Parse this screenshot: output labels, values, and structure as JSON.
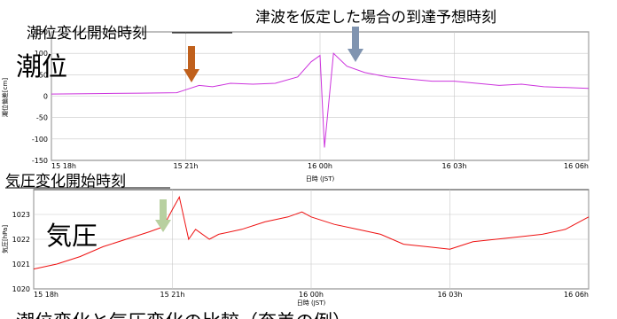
{
  "chart_data": [
    {
      "type": "line",
      "big_label": "潮位",
      "ylabel": "潮位偏差[cm]",
      "xlabel": "日時 (JST)",
      "ylim": [
        -150,
        150
      ],
      "yticks": [
        -150,
        -100,
        -50,
        0,
        50,
        100,
        150
      ],
      "ytick_labels": [
        "-150",
        "-100",
        "-50",
        "0",
        "50",
        "100",
        "150"
      ],
      "xlim": [
        0,
        12
      ],
      "xticks": [
        0,
        3,
        6,
        9,
        12
      ],
      "xtick_labels": [
        "15 18h",
        "15 21h",
        "16 00h",
        "16 03h",
        "16 06h"
      ],
      "grid": true,
      "color": "#cc33dd",
      "series": [
        {
          "x": [
            0,
            1,
            2,
            2.8,
            3.0,
            3.3,
            3.6,
            4.0,
            4.5,
            5.0,
            5.5,
            5.8,
            6.0,
            6.1,
            6.3,
            6.6,
            7.0,
            7.5,
            8.0,
            8.5,
            9.0,
            9.5,
            10.0,
            10.5,
            11.0,
            11.5,
            12.0
          ],
          "y": [
            5,
            6,
            7,
            8,
            15,
            25,
            22,
            30,
            28,
            30,
            45,
            80,
            95,
            -120,
            100,
            70,
            55,
            45,
            40,
            35,
            35,
            30,
            25,
            28,
            22,
            20,
            18
          ]
        }
      ],
      "annotations": {
        "start_label": "潮位変化開始時刻",
        "arrival_label": "津波を仮定した場合の到達予想時刻"
      }
    },
    {
      "type": "line",
      "big_label": "気圧",
      "ylabel": "気圧[hPa]",
      "xlabel": "日時 (JST)",
      "ylim": [
        1020,
        1024
      ],
      "yticks": [
        1020,
        1021,
        1022,
        1023
      ],
      "ytick_labels": [
        "1020",
        "1021",
        "1022",
        "1023"
      ],
      "xlim": [
        0,
        12
      ],
      "xticks": [
        0,
        3,
        6,
        9,
        12
      ],
      "xtick_labels": [
        "15 18h",
        "15 21h",
        "16 00h",
        "16 03h",
        "16 06h"
      ],
      "grid": true,
      "color": "#ee1111",
      "series": [
        {
          "x": [
            0,
            0.5,
            1.0,
            1.5,
            2.0,
            2.5,
            2.8,
            3.0,
            3.15,
            3.35,
            3.5,
            3.8,
            4.0,
            4.5,
            5.0,
            5.5,
            5.8,
            6.0,
            6.5,
            7.0,
            7.5,
            8.0,
            8.5,
            9.0,
            9.5,
            10.0,
            10.5,
            11.0,
            11.5,
            12.0
          ],
          "y": [
            1020.8,
            1021.0,
            1021.3,
            1021.7,
            1022.0,
            1022.3,
            1022.5,
            1023.2,
            1023.7,
            1022.0,
            1022.4,
            1022.0,
            1022.2,
            1022.4,
            1022.7,
            1022.9,
            1023.1,
            1022.9,
            1022.6,
            1022.4,
            1022.2,
            1021.8,
            1021.7,
            1021.6,
            1021.9,
            1022.0,
            1022.1,
            1022.2,
            1022.4,
            1022.9
          ]
        }
      ],
      "annotations": {
        "start_label": "気圧変化開始時刻"
      }
    }
  ],
  "caption": "潮位変化と気圧変化の比較（奄美の例）",
  "arrow_colors": {
    "tide_start": "#c0601c",
    "tsunami_arrival": "#8094b0",
    "pressure_start": "#b8d0a0"
  }
}
